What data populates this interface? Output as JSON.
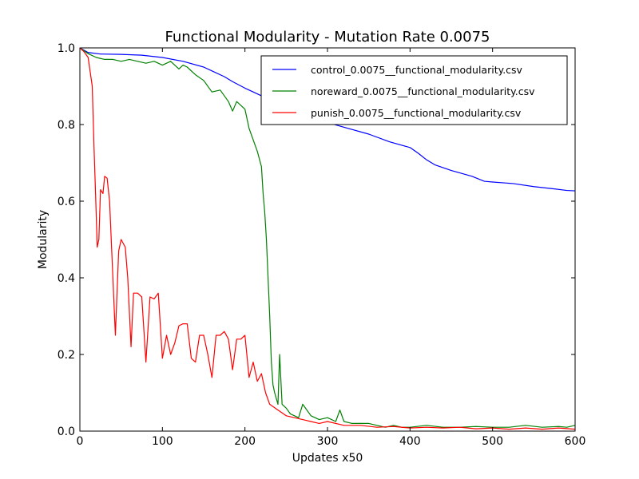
{
  "chart_data": {
    "type": "line",
    "title": "Functional Modularity - Mutation Rate 0.0075",
    "xlabel": "Updates x50",
    "ylabel": "Modularity",
    "xlim": [
      0,
      600
    ],
    "ylim": [
      0.0,
      1.0
    ],
    "xticks": [
      0,
      100,
      200,
      300,
      400,
      500,
      600
    ],
    "xtick_labels": [
      "0",
      "100",
      "200",
      "300",
      "400",
      "500",
      "600"
    ],
    "yticks": [
      0.0,
      0.2,
      0.4,
      0.6,
      0.8,
      1.0
    ],
    "ytick_labels": [
      "0.0",
      "0.2",
      "0.4",
      "0.6",
      "0.8",
      "1.0"
    ],
    "grid": false,
    "legend_position": "top-right",
    "series": [
      {
        "name": "control_0.0075__functional_modularity.csv",
        "color": "#0000ff",
        "x": [
          0,
          10,
          25,
          50,
          75,
          100,
          125,
          150,
          160,
          175,
          185,
          200,
          210,
          225,
          235,
          250,
          260,
          275,
          300,
          325,
          350,
          375,
          400,
          410,
          420,
          430,
          450,
          475,
          490,
          500,
          525,
          550,
          575,
          590,
          600
        ],
        "y": [
          1.0,
          0.988,
          0.984,
          0.983,
          0.981,
          0.975,
          0.965,
          0.95,
          0.94,
          0.925,
          0.912,
          0.895,
          0.885,
          0.87,
          0.855,
          0.84,
          0.83,
          0.815,
          0.805,
          0.79,
          0.775,
          0.755,
          0.74,
          0.725,
          0.708,
          0.695,
          0.68,
          0.665,
          0.652,
          0.65,
          0.646,
          0.638,
          0.632,
          0.628,
          0.627
        ]
      },
      {
        "name": "noreward_0.0075__functional_modularity.csv",
        "color": "#008000",
        "x": [
          0,
          10,
          20,
          30,
          40,
          50,
          60,
          70,
          80,
          90,
          100,
          110,
          120,
          125,
          130,
          140,
          150,
          160,
          170,
          180,
          185,
          190,
          200,
          205,
          210,
          215,
          220,
          222,
          224,
          226,
          228,
          230,
          232,
          234,
          236,
          240,
          242,
          245,
          250,
          255,
          260,
          265,
          270,
          280,
          290,
          300,
          310,
          315,
          320,
          330,
          340,
          350,
          360,
          370,
          380,
          390,
          400,
          420,
          440,
          460,
          480,
          500,
          520,
          540,
          560,
          580,
          590,
          600
        ],
        "y": [
          1.0,
          0.985,
          0.975,
          0.97,
          0.97,
          0.965,
          0.97,
          0.965,
          0.96,
          0.965,
          0.955,
          0.965,
          0.945,
          0.955,
          0.95,
          0.93,
          0.915,
          0.885,
          0.89,
          0.86,
          0.835,
          0.86,
          0.84,
          0.79,
          0.76,
          0.73,
          0.69,
          0.62,
          0.57,
          0.5,
          0.4,
          0.3,
          0.18,
          0.12,
          0.1,
          0.07,
          0.2,
          0.07,
          0.06,
          0.045,
          0.04,
          0.035,
          0.07,
          0.04,
          0.03,
          0.035,
          0.025,
          0.055,
          0.025,
          0.02,
          0.02,
          0.02,
          0.015,
          0.01,
          0.015,
          0.01,
          0.01,
          0.015,
          0.01,
          0.01,
          0.012,
          0.01,
          0.01,
          0.015,
          0.01,
          0.012,
          0.01,
          0.015
        ]
      },
      {
        "name": "punish_0.0075__functional_modularity.csv",
        "color": "#ff0000",
        "x": [
          0,
          5,
          10,
          15,
          17,
          19,
          21,
          23,
          25,
          28,
          30,
          33,
          36,
          40,
          43,
          47,
          50,
          55,
          58,
          62,
          65,
          70,
          75,
          80,
          85,
          90,
          95,
          100,
          105,
          110,
          115,
          120,
          125,
          130,
          135,
          140,
          145,
          150,
          155,
          160,
          165,
          170,
          175,
          180,
          185,
          190,
          195,
          200,
          205,
          210,
          215,
          220,
          225,
          230,
          240,
          250,
          260,
          270,
          280,
          290,
          300,
          320,
          340,
          360,
          380,
          400,
          420,
          440,
          460,
          480,
          500,
          520,
          540,
          560,
          580,
          600
        ],
        "y": [
          1.0,
          0.99,
          0.975,
          0.9,
          0.75,
          0.62,
          0.48,
          0.5,
          0.63,
          0.62,
          0.665,
          0.66,
          0.6,
          0.4,
          0.25,
          0.47,
          0.5,
          0.48,
          0.4,
          0.22,
          0.36,
          0.36,
          0.35,
          0.18,
          0.35,
          0.345,
          0.36,
          0.19,
          0.25,
          0.2,
          0.23,
          0.275,
          0.28,
          0.28,
          0.19,
          0.18,
          0.25,
          0.25,
          0.2,
          0.14,
          0.25,
          0.25,
          0.26,
          0.24,
          0.16,
          0.24,
          0.24,
          0.25,
          0.14,
          0.18,
          0.13,
          0.15,
          0.1,
          0.07,
          0.055,
          0.04,
          0.035,
          0.03,
          0.025,
          0.02,
          0.025,
          0.015,
          0.015,
          0.01,
          0.012,
          0.008,
          0.01,
          0.008,
          0.01,
          0.006,
          0.008,
          0.005,
          0.008,
          0.005,
          0.008,
          0.005
        ]
      }
    ]
  }
}
